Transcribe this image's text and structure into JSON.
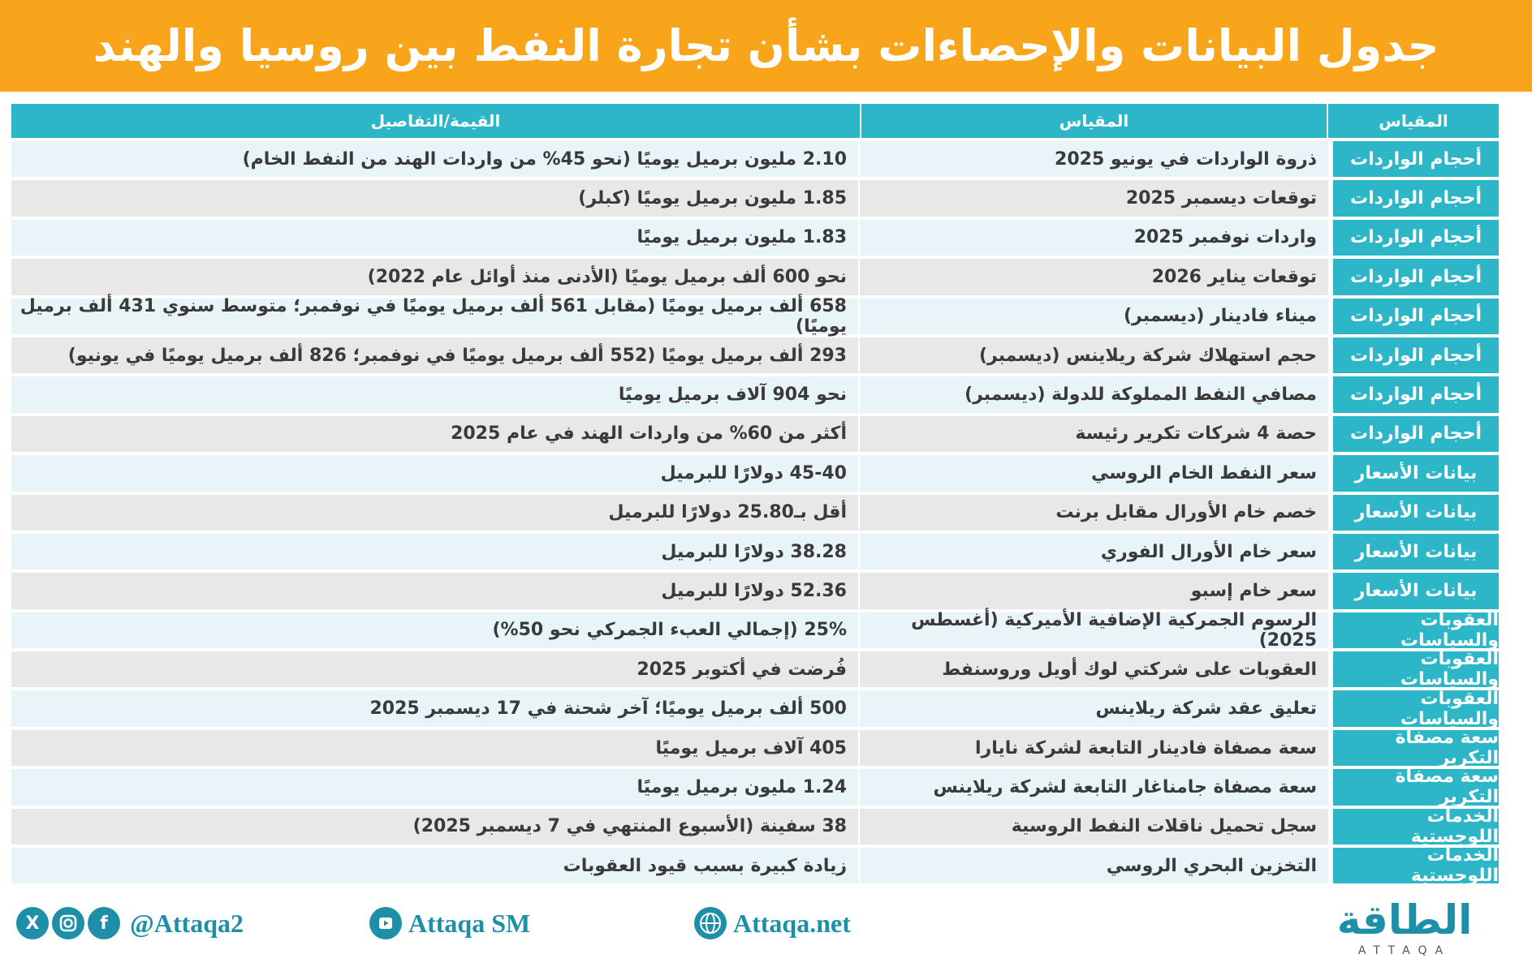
{
  "title": "جدول البيانات والإحصاءات بشأن تجارة النفط بين روسيا والهند",
  "table": {
    "headers": [
      "المقياس",
      "المقياس",
      "القيمة/التفاصيل"
    ],
    "rows": [
      {
        "category": "أحجام الواردات",
        "metric": "ذروة الواردات في يونيو 2025",
        "value": "2.10 مليون برميل يوميًا (نحو 45% من واردات الهند من النفط الخام)"
      },
      {
        "category": "أحجام الواردات",
        "metric": "توقعات ديسمبر 2025",
        "value": "1.85 مليون برميل يوميًا (كبلر)"
      },
      {
        "category": "أحجام الواردات",
        "metric": "واردات نوفمبر 2025",
        "value": "1.83 مليون برميل يوميًا"
      },
      {
        "category": "أحجام الواردات",
        "metric": "توقعات يناير 2026",
        "value": "نحو 600 ألف برميل يوميًا (الأدنى منذ أوائل عام 2022)"
      },
      {
        "category": "أحجام الواردات",
        "metric": "ميناء فادينار (ديسمبر)",
        "value": "658 ألف برميل يوميًا (مقابل 561 ألف برميل يوميًا في نوفمبر؛ متوسط سنوي 431 ألف برميل يوميًا)"
      },
      {
        "category": "أحجام الواردات",
        "metric": "حجم استهلاك شركة ريلاينس (ديسمبر)",
        "value": "293 ألف برميل يوميًا (552 ألف برميل يوميًا في نوفمبر؛ 826 ألف برميل يوميًا في يونيو)"
      },
      {
        "category": "أحجام الواردات",
        "metric": "مصافي النفط المملوكة للدولة (ديسمبر)",
        "value": "نحو 904 آلاف برميل يوميًا"
      },
      {
        "category": "أحجام الواردات",
        "metric": "حصة 4 شركات تكرير رئيسة",
        "value": "أكثر من 60% من واردات الهند في عام 2025"
      },
      {
        "category": "بيانات الأسعار",
        "metric": "سعر النفط الخام الروسي",
        "value": "45-40 دولارًا للبرميل"
      },
      {
        "category": "بيانات الأسعار",
        "metric": "خصم خام الأورال مقابل برنت",
        "value": "أقل بـ25.80 دولارًا للبرميل"
      },
      {
        "category": "بيانات الأسعار",
        "metric": "سعر خام الأورال الفوري",
        "value": "38.28 دولارًا للبرميل"
      },
      {
        "category": "بيانات الأسعار",
        "metric": "سعر خام إسبو",
        "value": "52.36 دولارًا للبرميل"
      },
      {
        "category": "العقوبات والسياسات",
        "metric": "الرسوم الجمركية الإضافية الأميركية (أغسطس 2025)",
        "value": "25% (إجمالي العبء الجمركي نحو 50%)"
      },
      {
        "category": "العقوبات والسياسات",
        "metric": "العقوبات على شركتي لوك أويل وروسنفط",
        "value": "فُرضت في أكتوبر 2025"
      },
      {
        "category": "العقوبات والسياسات",
        "metric": "تعليق عقد شركة ريلاينس",
        "value": "500 ألف برميل يوميًا؛ آخر شحنة في 17 ديسمبر 2025"
      },
      {
        "category": "سعة مصفاة التكرير",
        "metric": "سعة مصفاة فادينار التابعة لشركة نايارا",
        "value": "405 آلاف برميل يوميًا"
      },
      {
        "category": "سعة مصفاة التكرير",
        "metric": "سعة مصفاة جامناغار  التابعة لشركة ريلاينس",
        "value": "1.24 مليون برميل يوميًا"
      },
      {
        "category": "الخدمات اللوجستية",
        "metric": "سجل تحميل ناقلات النفط الروسية",
        "value": "38 سفينة (الأسبوع المنتهي في 7 ديسمبر 2025)"
      },
      {
        "category": "الخدمات اللوجستية",
        "metric": "التخزين البحري الروسي",
        "value": "زيادة كبيرة بسبب قيود العقوبات"
      }
    ]
  },
  "footer": {
    "social_handle": "@Attaqa2",
    "youtube": "Attaqa SM",
    "website": "Attaqa.net",
    "logo_ar": "الطاقة",
    "logo_en": "ATTAQA"
  },
  "colors": {
    "title_bg": "#f9a51c",
    "header_bg": "#2db5c8",
    "row_light": "#e9f4f9",
    "row_gray": "#e8e8e8",
    "brand": "#1e8fa8"
  }
}
